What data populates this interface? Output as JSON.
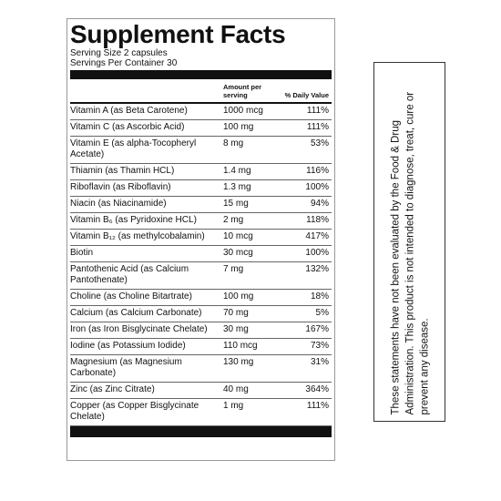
{
  "label": {
    "title": "Supplement Facts",
    "serving_size": "Serving Size 2 capsules",
    "servings_per_container": "Servings Per Container 30",
    "columns": [
      "Amount per serving",
      "% Daily Value"
    ],
    "rows": [
      [
        "Vitamin A (as Beta Carotene)",
        "1000 mcg",
        "111%"
      ],
      [
        "Vitamin C (as Ascorbic Acid)",
        "100 mg",
        "111%"
      ],
      [
        "Vitamin E (as alpha-Tocopheryl Acetate)",
        "8 mg",
        "53%"
      ],
      [
        "Thiamin (as Thamin HCL)",
        "1.4 mg",
        "116%"
      ],
      [
        "Riboflavin (as Riboflavin)",
        "1.3 mg",
        "100%"
      ],
      [
        "Niacin (as Niacinamide)",
        "15 mg",
        "94%"
      ],
      [
        "Vitamin B₆ (as Pyridoxine HCL)",
        "2 mg",
        "118%"
      ],
      [
        "Vitamin B₁₂ (as methylcobalamin)",
        "10 mcg",
        "417%"
      ],
      [
        "Biotin",
        "30 mcg",
        "100%"
      ],
      [
        "Pantothenic Acid (as Calcium Pantothenate)",
        "7 mg",
        "132%"
      ],
      [
        "Choline (as Choline Bitartrate)",
        "100 mg",
        "18%"
      ],
      [
        "Calcium (as Calcium Carbonate)",
        "70 mg",
        "5%"
      ],
      [
        "Iron (as Iron Bisglycinate Chelate)",
        "30 mg",
        "167%"
      ],
      [
        "Iodine (as Potassium Iodide)",
        "110 mcg",
        "73%"
      ],
      [
        "Magnesium (as Magnesium Carbonate)",
        "130 mg",
        "31%"
      ],
      [
        "Zinc (as Zinc Citrate)",
        "40 mg",
        "364%"
      ],
      [
        "Copper (as Copper Bisglycinate Chelate)",
        "1 mg",
        "111%"
      ]
    ]
  },
  "disclaimer": "These statements have not been evaluated by the Food & Drug Administration. This product is not intended to diagnose, treat, cure or prevent any disease."
}
